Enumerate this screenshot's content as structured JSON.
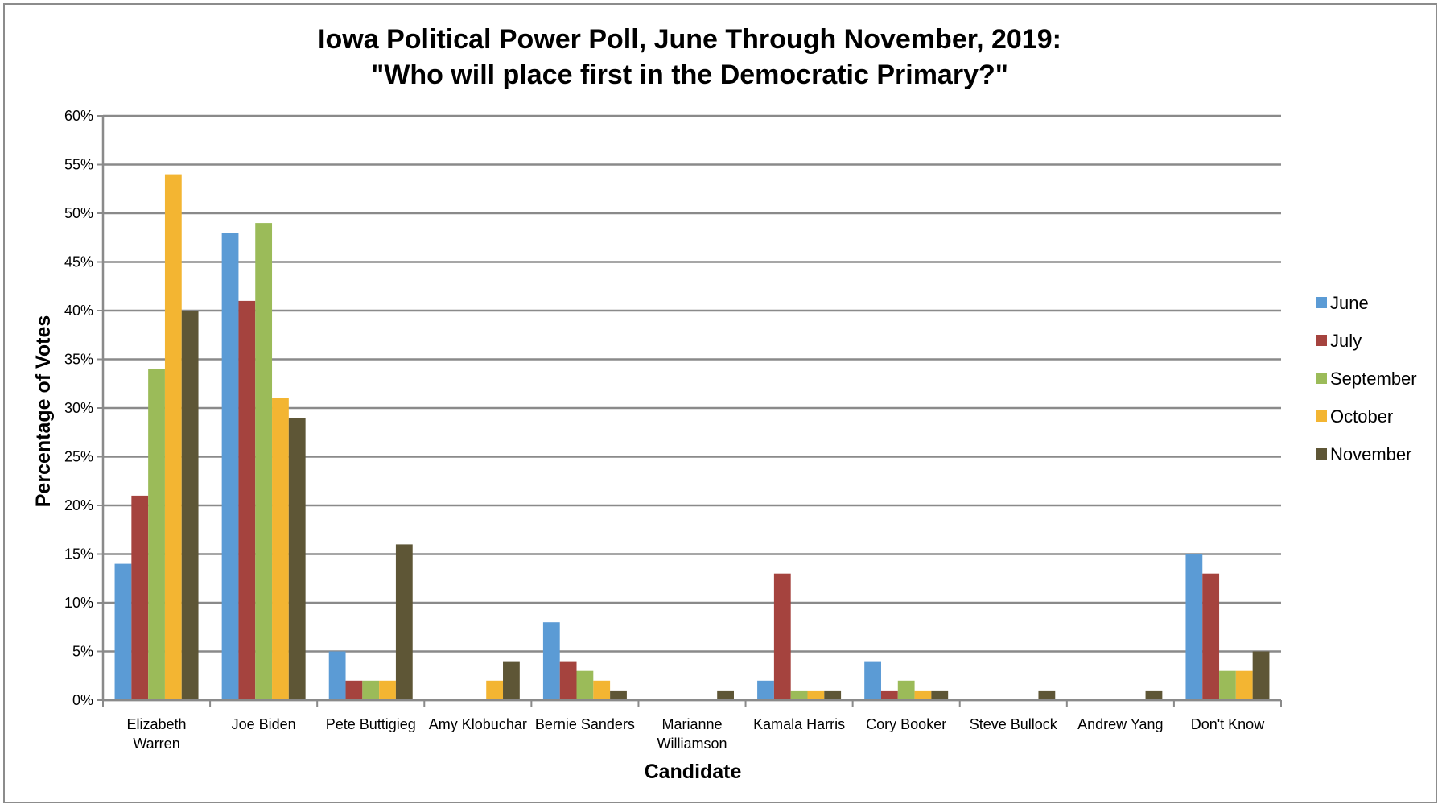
{
  "chart_data": {
    "type": "bar",
    "title": "Iowa Political Power Poll, June Through November, 2019:",
    "subtitle": "\"Who will place first in the Democratic Primary?\"",
    "xlabel": "Candidate",
    "ylabel": "Percentage of Votes",
    "ylim": [
      0,
      60
    ],
    "yticks": [
      "0%",
      "5%",
      "10%",
      "15%",
      "20%",
      "25%",
      "30%",
      "35%",
      "40%",
      "45%",
      "50%",
      "55%",
      "60%"
    ],
    "grid": true,
    "legend_position": "right",
    "categories": [
      [
        "Elizabeth",
        "Warren"
      ],
      [
        "Joe Biden"
      ],
      [
        "Pete Buttigieg"
      ],
      [
        "Amy Klobuchar"
      ],
      [
        "Bernie Sanders"
      ],
      [
        "Marianne",
        "Williamson"
      ],
      [
        "Kamala Harris"
      ],
      [
        "Cory Booker"
      ],
      [
        "Steve Bullock"
      ],
      [
        "Andrew Yang"
      ],
      [
        "Don't Know"
      ]
    ],
    "series": [
      {
        "name": "June",
        "color": "#5b9bd5",
        "values": [
          14,
          48,
          5,
          0,
          8,
          0,
          2,
          4,
          0,
          0,
          15
        ]
      },
      {
        "name": "July",
        "color": "#a5433e",
        "values": [
          21,
          41,
          2,
          0,
          4,
          0,
          13,
          1,
          0,
          0,
          13
        ]
      },
      {
        "name": "September",
        "color": "#9bbb59",
        "values": [
          34,
          49,
          2,
          0,
          3,
          0,
          1,
          2,
          0,
          0,
          3
        ]
      },
      {
        "name": "October",
        "color": "#f3b532",
        "values": [
          54,
          31,
          2,
          2,
          2,
          0,
          1,
          1,
          0,
          0,
          3
        ]
      },
      {
        "name": "November",
        "color": "#5e5636",
        "values": [
          40,
          29,
          16,
          4,
          1,
          1,
          1,
          1,
          1,
          1,
          5
        ]
      }
    ]
  }
}
